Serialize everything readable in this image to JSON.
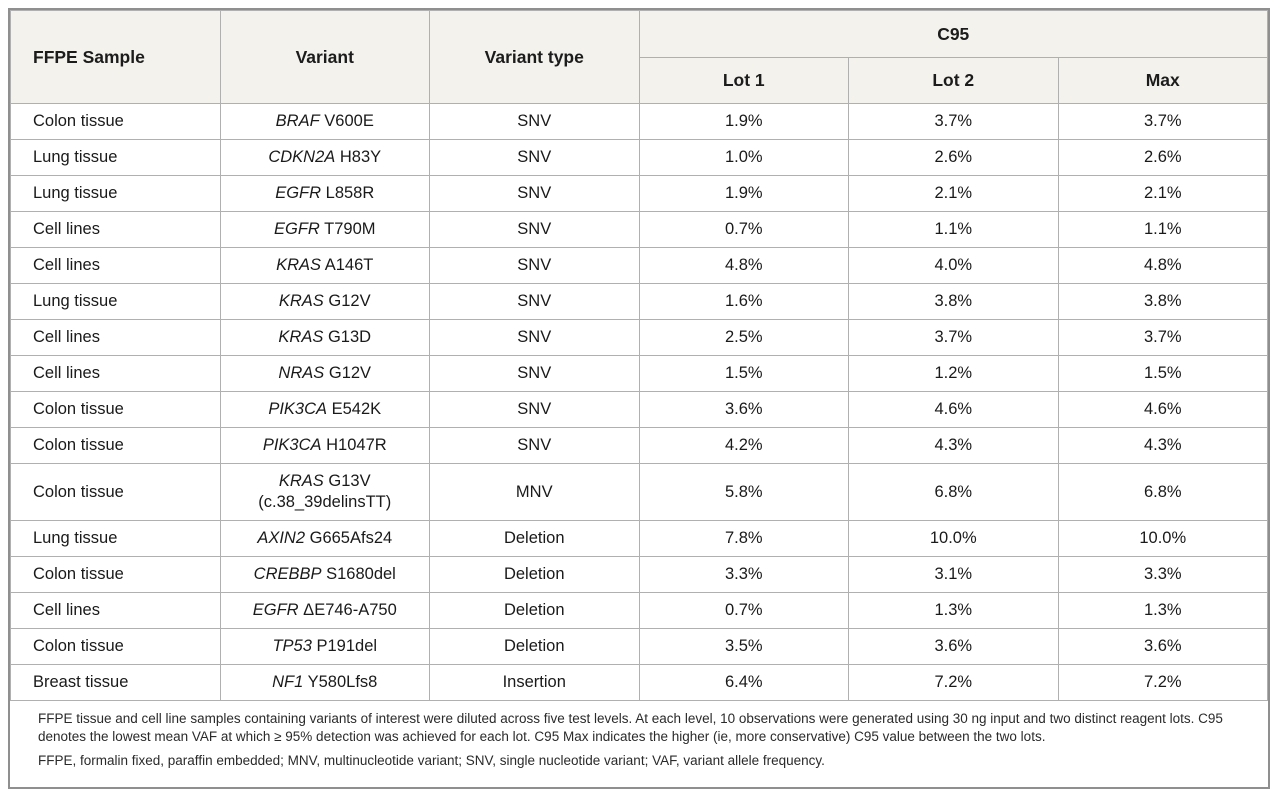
{
  "table": {
    "headers": {
      "sample": "FFPE Sample",
      "variant": "Variant",
      "variant_type": "Variant type",
      "c95_group": "C95",
      "lot1": "Lot 1",
      "lot2": "Lot 2",
      "max": "Max"
    },
    "rows": [
      {
        "sample": "Colon tissue",
        "gene": "BRAF",
        "mutation": "V600E",
        "type": "SNV",
        "lot1": "1.9%",
        "lot2": "3.7%",
        "max": "3.7%"
      },
      {
        "sample": "Lung tissue",
        "gene": "CDKN2A",
        "mutation": "H83Y",
        "type": "SNV",
        "lot1": "1.0%",
        "lot2": "2.6%",
        "max": "2.6%"
      },
      {
        "sample": "Lung tissue",
        "gene": "EGFR",
        "mutation": "L858R",
        "type": "SNV",
        "lot1": "1.9%",
        "lot2": "2.1%",
        "max": "2.1%"
      },
      {
        "sample": "Cell lines",
        "gene": "EGFR",
        "mutation": "T790M",
        "type": "SNV",
        "lot1": "0.7%",
        "lot2": "1.1%",
        "max": "1.1%"
      },
      {
        "sample": "Cell lines",
        "gene": "KRAS",
        "mutation": "A146T",
        "type": "SNV",
        "lot1": "4.8%",
        "lot2": "4.0%",
        "max": "4.8%"
      },
      {
        "sample": "Lung tissue",
        "gene": "KRAS",
        "mutation": "G12V",
        "type": "SNV",
        "lot1": "1.6%",
        "lot2": "3.8%",
        "max": "3.8%"
      },
      {
        "sample": "Cell lines",
        "gene": "KRAS",
        "mutation": "G13D",
        "type": "SNV",
        "lot1": "2.5%",
        "lot2": "3.7%",
        "max": "3.7%"
      },
      {
        "sample": "Cell lines",
        "gene": "NRAS",
        "mutation": "G12V",
        "type": "SNV",
        "lot1": "1.5%",
        "lot2": "1.2%",
        "max": "1.5%"
      },
      {
        "sample": "Colon tissue",
        "gene": "PIK3CA",
        "mutation": "E542K",
        "type": "SNV",
        "lot1": "3.6%",
        "lot2": "4.6%",
        "max": "4.6%"
      },
      {
        "sample": "Colon tissue",
        "gene": "PIK3CA",
        "mutation": "H1047R",
        "type": "SNV",
        "lot1": "4.2%",
        "lot2": "4.3%",
        "max": "4.3%"
      },
      {
        "sample": "Colon tissue",
        "gene": "KRAS",
        "mutation": "G13V",
        "note": "(c.38_39delinsTT)",
        "type": "MNV",
        "lot1": "5.8%",
        "lot2": "6.8%",
        "max": "6.8%"
      },
      {
        "sample": "Lung tissue",
        "gene": "AXIN2",
        "mutation": "G665Afs24",
        "type": "Deletion",
        "lot1": "7.8%",
        "lot2": "10.0%",
        "max": "10.0%"
      },
      {
        "sample": "Colon tissue",
        "gene": "CREBBP",
        "mutation": "S1680del",
        "type": "Deletion",
        "lot1": "3.3%",
        "lot2": "3.1%",
        "max": "3.3%"
      },
      {
        "sample": "Cell lines",
        "gene": "EGFR",
        "mutation": "ΔE746-A750",
        "type": "Deletion",
        "lot1": "0.7%",
        "lot2": "1.3%",
        "max": "1.3%"
      },
      {
        "sample": "Colon tissue",
        "gene": "TP53",
        "mutation": "P191del",
        "type": "Deletion",
        "lot1": "3.5%",
        "lot2": "3.6%",
        "max": "3.6%"
      },
      {
        "sample": "Breast tissue",
        "gene": "NF1",
        "mutation": "Y580Lfs8",
        "type": "Insertion",
        "lot1": "6.4%",
        "lot2": "7.2%",
        "max": "7.2%"
      }
    ],
    "footnotes": [
      "FFPE tissue and cell line samples containing variants of interest were diluted across five test levels. At each level, 10 observations were generated using 30 ng input and two distinct reagent lots. C95 denotes the lowest mean VAF at which ≥ 95% detection was achieved for each lot. C95 Max indicates the higher (ie, more conservative) C95 value between the two lots.",
      "FFPE, formalin fixed, paraffin embedded; MNV, multinucleotide variant; SNV, single nucleotide variant; VAF, variant allele frequency."
    ]
  },
  "colors": {
    "header_bg": "#f3f2ec",
    "outer_border": "#8f8f8f",
    "grid_border": "#b0b0b0",
    "text": "#1a1a1a"
  }
}
